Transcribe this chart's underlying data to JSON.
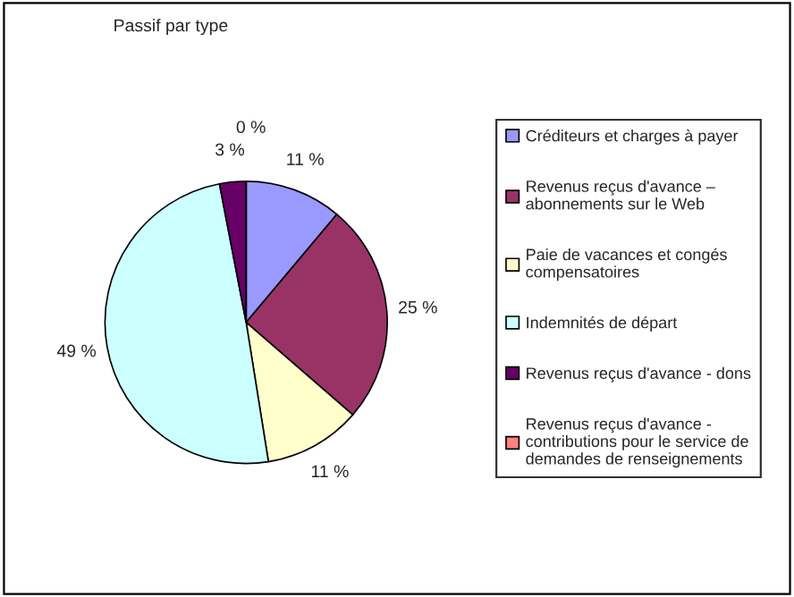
{
  "chart_data": {
    "type": "pie",
    "title": "Passif par type",
    "categories": [
      "Créditeurs et charges à payer",
      "Revenus reçus d'avance – abonnements sur le Web",
      "Paie de vacances et congés compensatoires",
      "Indemnités de départ",
      "Revenus reçus d'avance - dons",
      "Revenus reçus d'avance - contributions pour le service de demandes de renseignements"
    ],
    "values": [
      11,
      25,
      11,
      49,
      3,
      0
    ],
    "value_labels": [
      "11 %",
      "25 %",
      "11 %",
      "49 %",
      "3 %",
      "0 %"
    ],
    "colors": [
      "#9999ff",
      "#993366",
      "#ffffcc",
      "#ccffff",
      "#660066",
      "#ff8080"
    ],
    "legend": "right"
  }
}
